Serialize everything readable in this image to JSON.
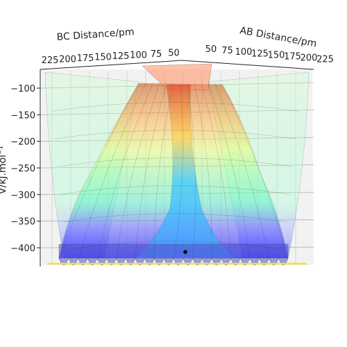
{
  "chart_data": {
    "type": "surface",
    "projection": "3d",
    "xlabel": "AB Distance/pm",
    "ylabel": "BC Distance/pm",
    "zlabel": "V/kJ.mol⁻¹",
    "ab_ticks": [
      "50",
      "75",
      "100",
      "125",
      "150",
      "175",
      "200",
      "225"
    ],
    "bc_ticks": [
      "225",
      "200",
      "175",
      "150",
      "125",
      "100",
      "75",
      "50"
    ],
    "z_ticks": [
      "−100",
      "−150",
      "−200",
      "−250",
      "−300",
      "−350",
      "−400"
    ],
    "z_tick_values": [
      -100,
      -150,
      -200,
      -250,
      -300,
      -350,
      -400
    ],
    "colormap": "jet",
    "surface_alpha": 0.4,
    "trajectory_marker": "black point near the surface minimum",
    "floor_line_color": "#f0e040"
  }
}
